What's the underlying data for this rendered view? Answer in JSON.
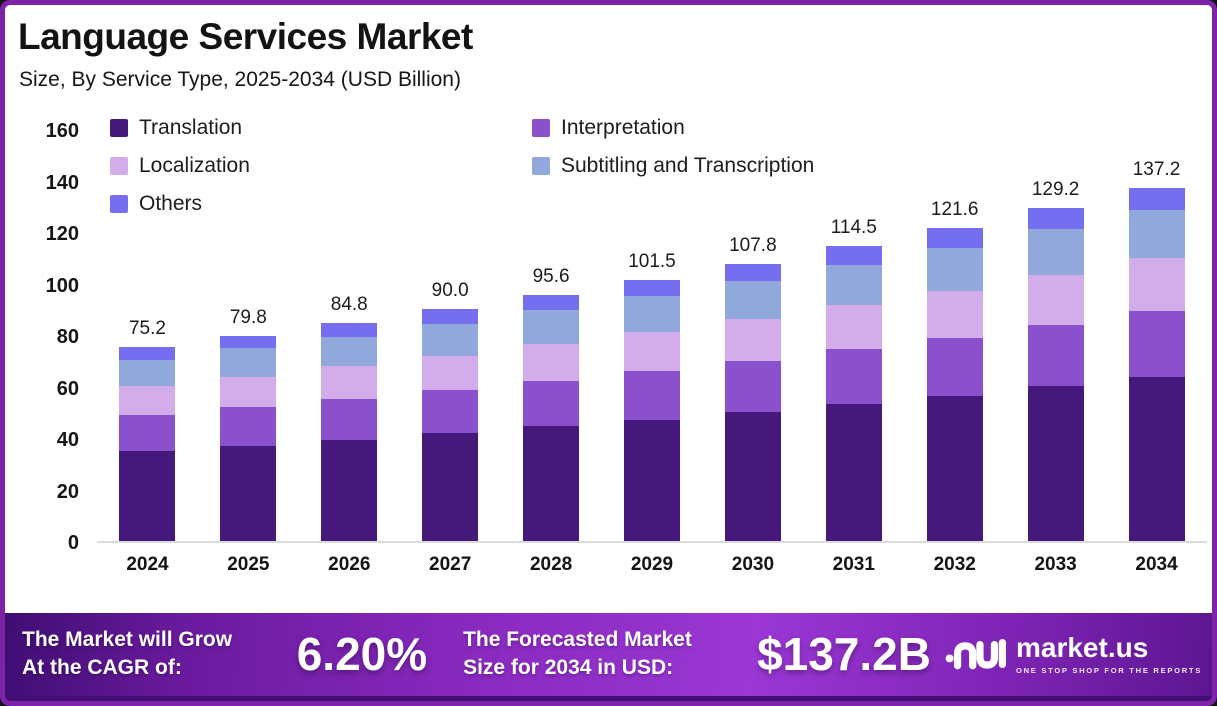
{
  "header": {
    "title": "Language Services Market",
    "subtitle": "Size, By Service Type, 2025-2034 (USD Billion)"
  },
  "chart_data": {
    "type": "bar",
    "stacked": true,
    "title": "Language Services Market Size, By Service Type, 2025-2034 (USD Billion)",
    "unit": "USD Billion",
    "categories": [
      "2024",
      "2025",
      "2026",
      "2027",
      "2028",
      "2029",
      "2030",
      "2031",
      "2032",
      "2033",
      "2034"
    ],
    "totals": [
      "75.2",
      "79.8",
      "84.8",
      "90.0",
      "95.6",
      "101.5",
      "107.8",
      "114.5",
      "121.6",
      "129.2",
      "137.2"
    ],
    "series": [
      {
        "name": "Translation",
        "color": "#45187B",
        "values": [
          35.0,
          37.1,
          39.4,
          41.9,
          44.5,
          47.2,
          50.1,
          53.2,
          56.5,
          60.1,
          63.8
        ]
      },
      {
        "name": "Interpretation",
        "color": "#8B50CB",
        "values": [
          13.9,
          14.8,
          15.7,
          16.6,
          17.7,
          18.8,
          19.9,
          21.2,
          22.5,
          23.9,
          25.4
        ]
      },
      {
        "name": "Localization",
        "color": "#D2ADE9",
        "values": [
          11.3,
          12.0,
          12.7,
          13.5,
          14.3,
          15.2,
          16.2,
          17.2,
          18.2,
          19.4,
          20.6
        ]
      },
      {
        "name": "Subtitling and Transcription",
        "color": "#90A8DC",
        "values": [
          10.3,
          10.9,
          11.6,
          12.3,
          13.1,
          13.9,
          14.8,
          15.7,
          16.7,
          17.7,
          18.8
        ]
      },
      {
        "name": "Others",
        "color": "#756FEF",
        "values": [
          4.7,
          5.0,
          5.4,
          5.7,
          6.0,
          6.4,
          6.8,
          7.2,
          7.7,
          8.1,
          8.6
        ]
      }
    ],
    "ylim": [
      0,
      160
    ],
    "yticks": [
      0,
      20,
      40,
      60,
      80,
      100,
      120,
      140,
      160
    ],
    "grid": false,
    "legend_position": "top-left-inside",
    "legend_columns": [
      [
        0,
        2,
        4
      ],
      [
        1,
        3
      ]
    ]
  },
  "footer": {
    "cagr_label_line1": "The Market will Grow",
    "cagr_label_line2": "At the CAGR of:",
    "cagr_value": "6.20%",
    "forecast_label_line1": "The Forecasted Market",
    "forecast_label_line2": "Size for 2034 in USD:",
    "forecast_value": "$137.2B",
    "brand": "market.us",
    "brand_tagline": "ONE STOP SHOP FOR THE REPORTS"
  },
  "colors": {
    "border": "#7D23A7",
    "background": "#FFFFFF",
    "axis_line": "#DCDCDC",
    "banner_dark": "#430F74",
    "banner_mid": "#9B37D5",
    "text": "#161616"
  }
}
